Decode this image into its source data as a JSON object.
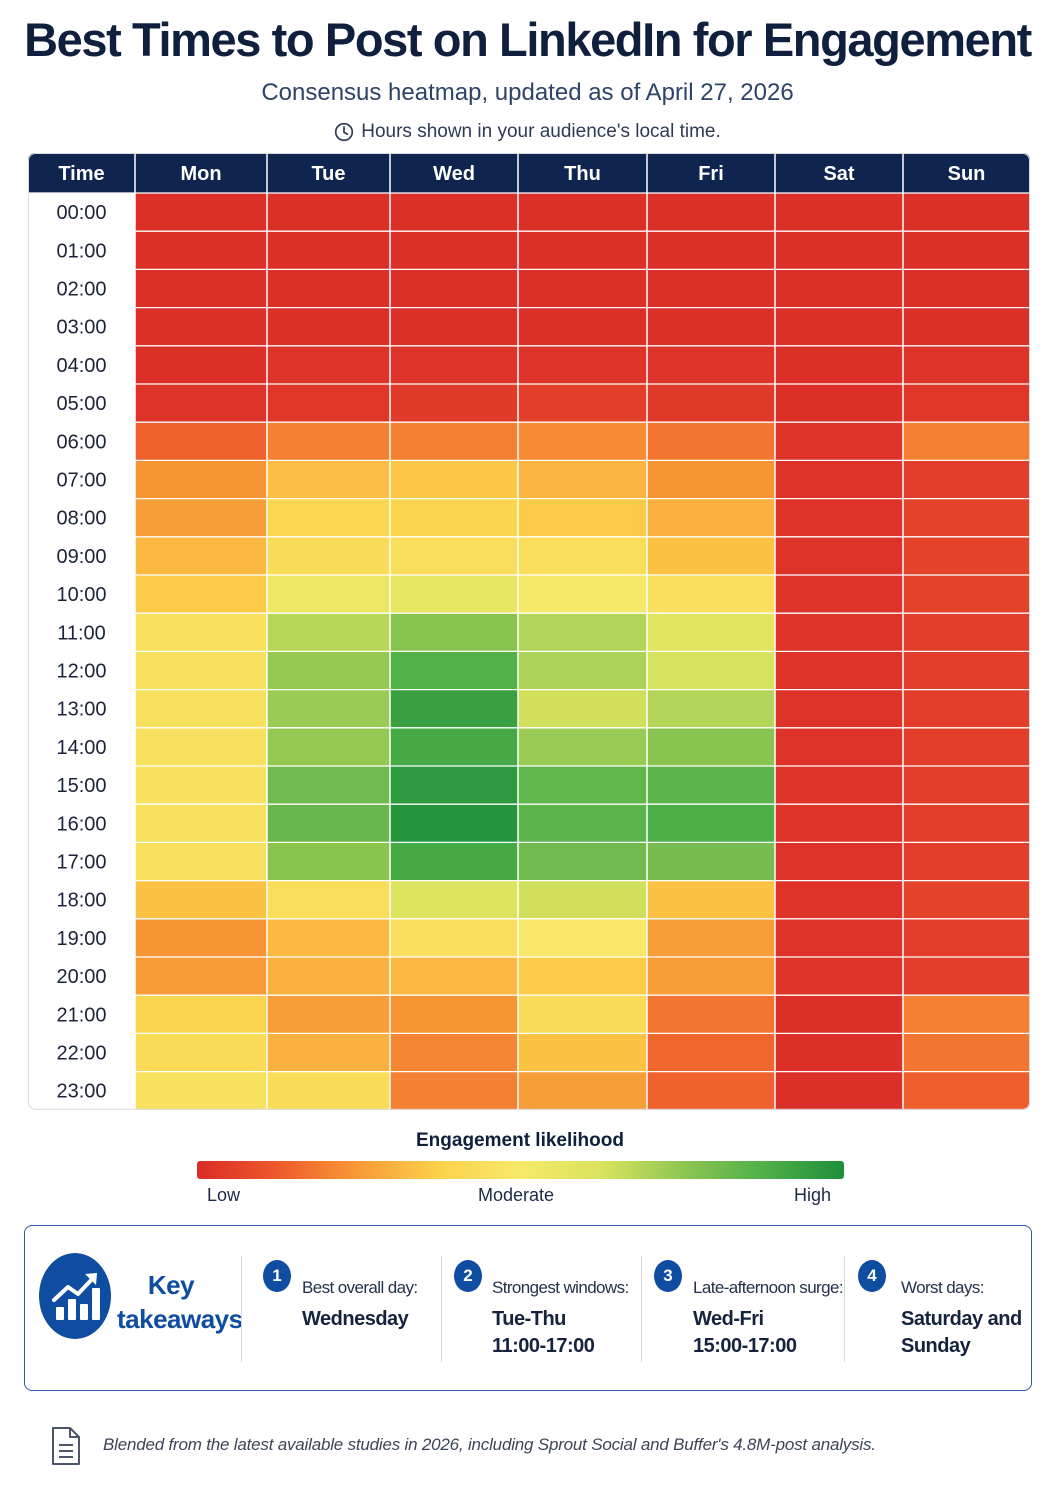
{
  "chart_data": {
    "type": "heatmap",
    "title": "Best Times to Post on LinkedIn for Engagement",
    "subtitle": "Consensus heatmap, updated as of April 27, 2026",
    "note": "Hours shown in your audience's local time.",
    "corner_header": "Time",
    "x": [
      "Mon",
      "Tue",
      "Wed",
      "Thu",
      "Fri",
      "Sat",
      "Sun"
    ],
    "y": [
      "00:00",
      "01:00",
      "02:00",
      "03:00",
      "04:00",
      "05:00",
      "06:00",
      "07:00",
      "08:00",
      "09:00",
      "10:00",
      "11:00",
      "12:00",
      "13:00",
      "14:00",
      "15:00",
      "16:00",
      "17:00",
      "18:00",
      "19:00",
      "20:00",
      "21:00",
      "22:00",
      "23:00"
    ],
    "value_scale": [
      0,
      10
    ],
    "values": [
      [
        0.1,
        0.1,
        0.1,
        0.1,
        0.1,
        0.1,
        0.1
      ],
      [
        0.1,
        0.1,
        0.1,
        0.1,
        0.1,
        0.1,
        0.1
      ],
      [
        0.1,
        0.1,
        0.1,
        0.1,
        0.1,
        0.1,
        0.1
      ],
      [
        0.1,
        0.1,
        0.1,
        0.1,
        0.1,
        0.1,
        0.1
      ],
      [
        0.1,
        0.2,
        0.2,
        0.2,
        0.2,
        0.1,
        0.2
      ],
      [
        0.2,
        0.3,
        0.4,
        0.5,
        0.4,
        0.1,
        0.3
      ],
      [
        1.4,
        2.0,
        2.0,
        2.2,
        1.8,
        0.2,
        2.0
      ],
      [
        2.4,
        3.3,
        3.5,
        3.1,
        2.4,
        0.2,
        0.5
      ],
      [
        2.6,
        4.0,
        3.9,
        3.6,
        3.0,
        0.2,
        0.6
      ],
      [
        3.2,
        4.3,
        4.4,
        4.4,
        3.4,
        0.2,
        0.6
      ],
      [
        3.6,
        5.4,
        5.6,
        5.1,
        4.5,
        0.2,
        0.6
      ],
      [
        4.6,
        6.8,
        7.6,
        6.9,
        5.9,
        0.2,
        0.5
      ],
      [
        4.6,
        7.4,
        8.7,
        7.0,
        6.3,
        0.2,
        0.5
      ],
      [
        4.6,
        7.3,
        9.3,
        6.4,
        6.9,
        0.2,
        0.5
      ],
      [
        4.6,
        7.4,
        9.0,
        7.3,
        7.6,
        0.2,
        0.5
      ],
      [
        4.6,
        8.1,
        9.6,
        8.4,
        8.5,
        0.2,
        0.5
      ],
      [
        4.6,
        8.3,
        9.8,
        8.5,
        8.8,
        0.2,
        0.5
      ],
      [
        4.6,
        7.6,
        9.0,
        8.1,
        8.0,
        0.2,
        0.5
      ],
      [
        3.4,
        4.4,
        6.1,
        6.4,
        3.4,
        0.2,
        0.6
      ],
      [
        2.4,
        3.2,
        4.5,
        5.0,
        2.6,
        0.2,
        0.5
      ],
      [
        2.5,
        3.0,
        3.2,
        3.6,
        2.6,
        0.2,
        0.5
      ],
      [
        3.9,
        2.6,
        2.4,
        4.3,
        1.8,
        0.1,
        2.0
      ],
      [
        4.2,
        3.0,
        2.1,
        3.4,
        1.5,
        0.1,
        1.8
      ],
      [
        4.6,
        4.3,
        2.0,
        2.6,
        1.4,
        0.1,
        1.3
      ]
    ],
    "colorscale": [
      "#da2b27",
      "#ee5a2c",
      "#f89a36",
      "#fdd24a",
      "#f7e86a",
      "#d9e45e",
      "#8ec652",
      "#4fb049",
      "#1e8f3a"
    ],
    "legend": {
      "title": "Engagement likelihood",
      "labels": [
        "Low",
        "Moderate",
        "High"
      ],
      "placement": "bottom-center"
    },
    "grid": true
  },
  "takeaways": {
    "title": "Key takeaways",
    "title_lines": [
      "Key",
      "takeaways"
    ],
    "icon": "trending-up-chart-icon",
    "items": [
      {
        "num": "1",
        "label": "Best overall day:",
        "value": "Wednesday"
      },
      {
        "num": "2",
        "label": "Strongest windows:",
        "value": "Tue-Thu\n11:00-17:00"
      },
      {
        "num": "3",
        "label": "Late-afternoon surge:",
        "value": "Wed-Fri\n15:00-17:00"
      },
      {
        "num": "4",
        "label": "Worst days:",
        "value": "Saturday and\nSunday"
      }
    ],
    "accent": "#0e4da0"
  },
  "footnote": {
    "icon": "document-icon",
    "text": "Blended from the latest available studies in 2026, including Sprout Social and Buffer's 4.8M-post analysis."
  },
  "header_color": "#0f2550",
  "clock_icon": "clock-icon"
}
